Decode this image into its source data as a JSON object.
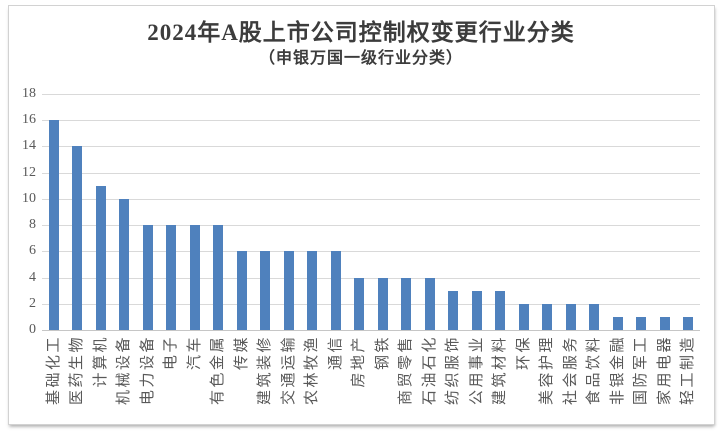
{
  "chart_data": {
    "type": "bar",
    "title": "2024年A股上市公司控制权变更行业分类",
    "subtitle": "（申银万国一级行业分类）",
    "categories": [
      "基础化工",
      "医药生物",
      "计算机",
      "机械设备",
      "电力设备",
      "电子",
      "汽车",
      "有色金属",
      "传媒",
      "建筑装修",
      "交通运输",
      "农林牧渔",
      "通信",
      "房地产",
      "钢铁",
      "商贸零售",
      "石油石化",
      "纺织服饰",
      "公用事业",
      "建筑材料",
      "环保",
      "美容护理",
      "社会服务",
      "食品饮料",
      "非银金融",
      "国防军工",
      "家用电器",
      "轻工制造"
    ],
    "values": [
      16,
      14,
      11,
      10,
      8,
      8,
      8,
      8,
      6,
      6,
      6,
      6,
      6,
      4,
      4,
      4,
      4,
      3,
      3,
      3,
      2,
      2,
      2,
      2,
      1,
      1,
      1,
      1
    ],
    "xlabel": "",
    "ylabel": "",
    "ylim": [
      0,
      18
    ],
    "y_ticks": [
      0,
      2,
      4,
      6,
      8,
      10,
      12,
      14,
      16,
      18
    ],
    "ytick_step": 2,
    "grid": true,
    "legend": "none",
    "bar_color": "#4f81bd",
    "gridline_color": "#d9d9d9",
    "axis_line_color": "#c6c6c6",
    "axis_text_color": "#595959",
    "title_color": "#3c3c3c",
    "frame_border_color": "#d2d2d2",
    "background_color": "#ffffff"
  }
}
